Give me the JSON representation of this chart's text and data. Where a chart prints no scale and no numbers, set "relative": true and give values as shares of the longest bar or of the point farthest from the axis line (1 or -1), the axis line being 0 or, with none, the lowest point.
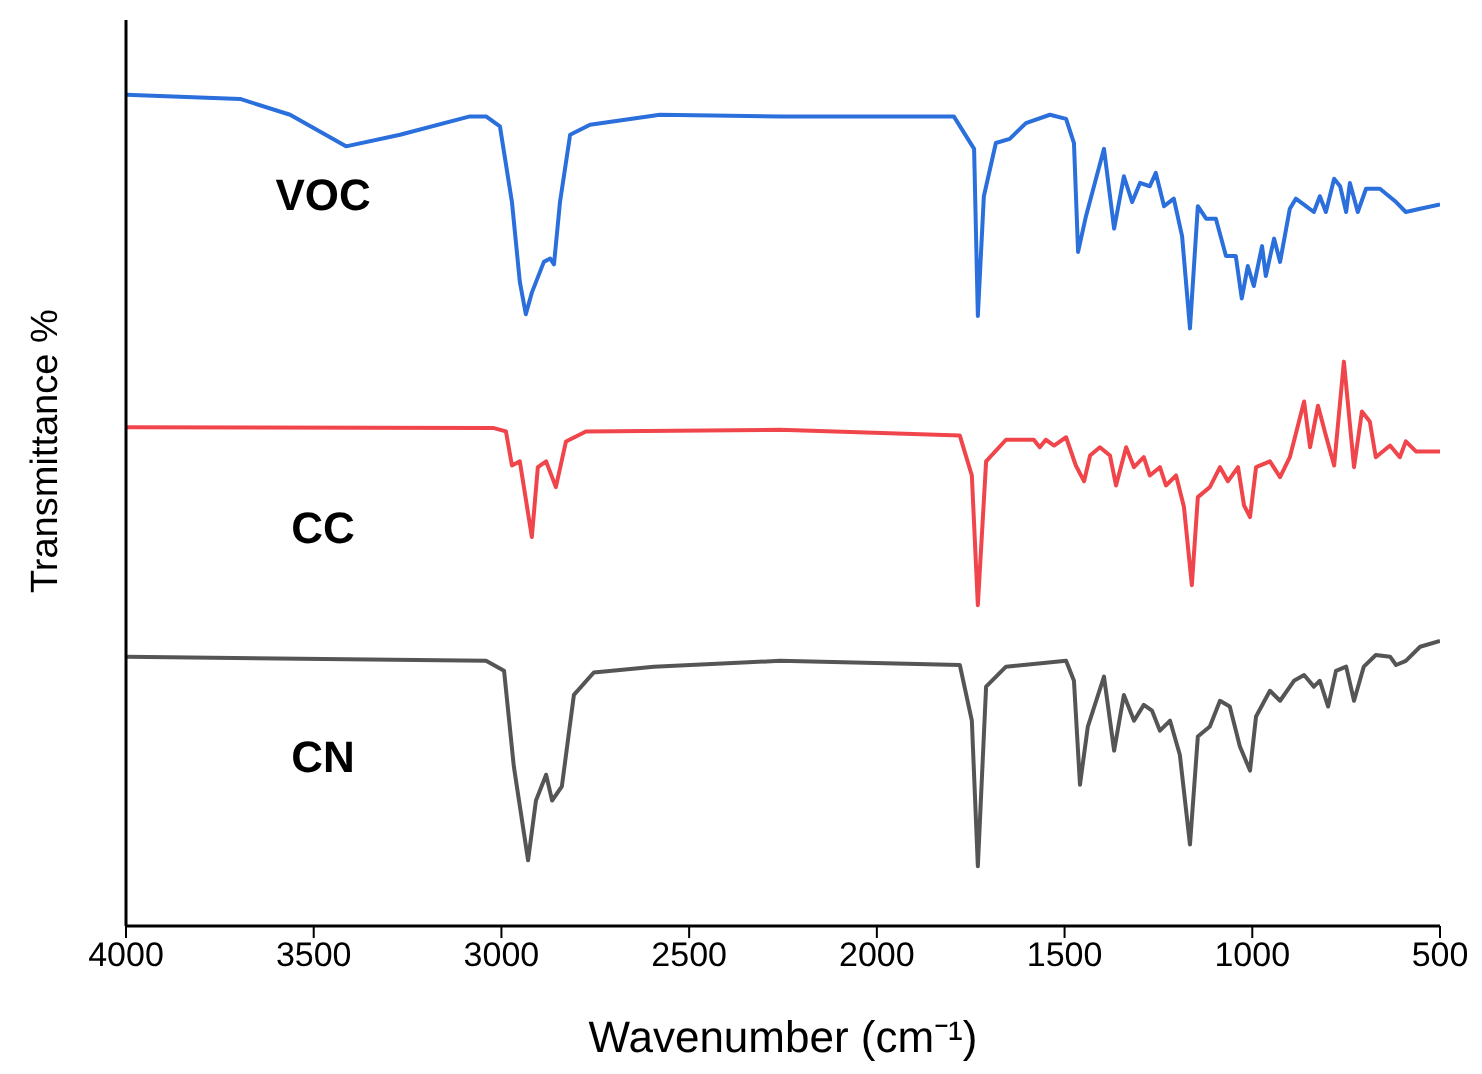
{
  "chart_data": {
    "type": "line",
    "relative": true,
    "xlabel": "Wavenumber (cm⁻¹)",
    "ylabel": "Transmittance %",
    "xlim": [
      4000,
      500
    ],
    "xticks": [
      4000,
      3500,
      3000,
      2500,
      2000,
      1500,
      1000,
      500
    ],
    "legend": false,
    "grid": false,
    "marker": "none",
    "line_style": "solid",
    "series": [
      {
        "name": "VOC",
        "color": "#2a6fdb",
        "x": [
          4000,
          3696,
          3563,
          3414,
          3270,
          3084,
          3041,
          3004,
          2972,
          2951,
          2935,
          2919,
          2887,
          2870,
          2860,
          2844,
          2817,
          2764,
          2578,
          2258,
          1795,
          1741,
          1731,
          1715,
          1683,
          1646,
          1603,
          1539,
          1496,
          1475,
          1464,
          1443,
          1395,
          1368,
          1342,
          1320,
          1299,
          1273,
          1257,
          1235,
          1209,
          1187,
          1166,
          1145,
          1123,
          1097,
          1070,
          1044,
          1028,
          1012,
          996,
          974,
          964,
          942,
          926,
          900,
          884,
          857,
          836,
          820,
          804,
          782,
          766,
          750,
          740,
          719,
          697,
          660,
          617,
          591,
          553,
          500
        ],
        "values": [
          1.0,
          0.995,
          0.976,
          0.938,
          0.952,
          0.974,
          0.974,
          0.962,
          0.871,
          0.775,
          0.736,
          0.762,
          0.799,
          0.803,
          0.796,
          0.871,
          0.952,
          0.964,
          0.976,
          0.974,
          0.974,
          0.935,
          0.734,
          0.878,
          0.942,
          0.947,
          0.966,
          0.976,
          0.971,
          0.942,
          0.811,
          0.854,
          0.935,
          0.839,
          0.902,
          0.871,
          0.894,
          0.89,
          0.906,
          0.866,
          0.875,
          0.83,
          0.719,
          0.866,
          0.851,
          0.851,
          0.806,
          0.806,
          0.755,
          0.794,
          0.77,
          0.818,
          0.782,
          0.827,
          0.799,
          0.863,
          0.875,
          0.866,
          0.859,
          0.878,
          0.859,
          0.899,
          0.89,
          0.859,
          0.894,
          0.859,
          0.887,
          0.887,
          0.871,
          0.859,
          0.863,
          0.868
        ]
      },
      {
        "name": "CC",
        "color": "#f0454a",
        "x": [
          4000,
          3020,
          2988,
          2972,
          2951,
          2919,
          2903,
          2881,
          2855,
          2828,
          2775,
          2258,
          1779,
          1747,
          1731,
          1709,
          1656,
          1582,
          1566,
          1550,
          1528,
          1496,
          1470,
          1448,
          1432,
          1406,
          1379,
          1363,
          1336,
          1315,
          1289,
          1273,
          1246,
          1230,
          1203,
          1182,
          1161,
          1145,
          1113,
          1086,
          1065,
          1038,
          1022,
          1006,
          990,
          953,
          926,
          900,
          862,
          846,
          825,
          804,
          782,
          756,
          729,
          708,
          687,
          671,
          633,
          607,
          591,
          564,
          500
        ],
        "values": [
          0.6,
          0.599,
          0.595,
          0.554,
          0.559,
          0.468,
          0.552,
          0.559,
          0.528,
          0.583,
          0.595,
          0.597,
          0.59,
          0.542,
          0.386,
          0.559,
          0.585,
          0.585,
          0.576,
          0.585,
          0.578,
          0.588,
          0.554,
          0.535,
          0.566,
          0.576,
          0.566,
          0.53,
          0.576,
          0.552,
          0.564,
          0.542,
          0.552,
          0.53,
          0.542,
          0.504,
          0.41,
          0.516,
          0.528,
          0.552,
          0.535,
          0.552,
          0.506,
          0.492,
          0.552,
          0.559,
          0.54,
          0.564,
          0.631,
          0.576,
          0.626,
          0.59,
          0.554,
          0.679,
          0.552,
          0.619,
          0.607,
          0.564,
          0.578,
          0.564,
          0.583,
          0.571,
          0.571
        ]
      },
      {
        "name": "CN",
        "color": "#555555",
        "x": [
          4000,
          3041,
          2993,
          2967,
          2929,
          2908,
          2881,
          2865,
          2839,
          2807,
          2754,
          2594,
          2258,
          1779,
          1747,
          1731,
          1709,
          1656,
          1496,
          1475,
          1459,
          1438,
          1395,
          1368,
          1342,
          1315,
          1289,
          1267,
          1246,
          1219,
          1193,
          1166,
          1145,
          1113,
          1086,
          1060,
          1033,
          1006,
          990,
          953,
          926,
          889,
          862,
          836,
          820,
          798,
          777,
          750,
          729,
          703,
          671,
          633,
          617,
          591,
          553,
          500
        ],
        "values": [
          0.324,
          0.319,
          0.307,
          0.192,
          0.079,
          0.151,
          0.182,
          0.151,
          0.168,
          0.278,
          0.305,
          0.312,
          0.319,
          0.314,
          0.247,
          0.072,
          0.288,
          0.312,
          0.319,
          0.295,
          0.17,
          0.24,
          0.3,
          0.211,
          0.278,
          0.247,
          0.266,
          0.259,
          0.235,
          0.247,
          0.206,
          0.098,
          0.228,
          0.24,
          0.271,
          0.264,
          0.216,
          0.187,
          0.252,
          0.283,
          0.271,
          0.295,
          0.302,
          0.288,
          0.295,
          0.264,
          0.307,
          0.312,
          0.271,
          0.312,
          0.326,
          0.324,
          0.314,
          0.319,
          0.336,
          0.343
        ]
      }
    ]
  }
}
